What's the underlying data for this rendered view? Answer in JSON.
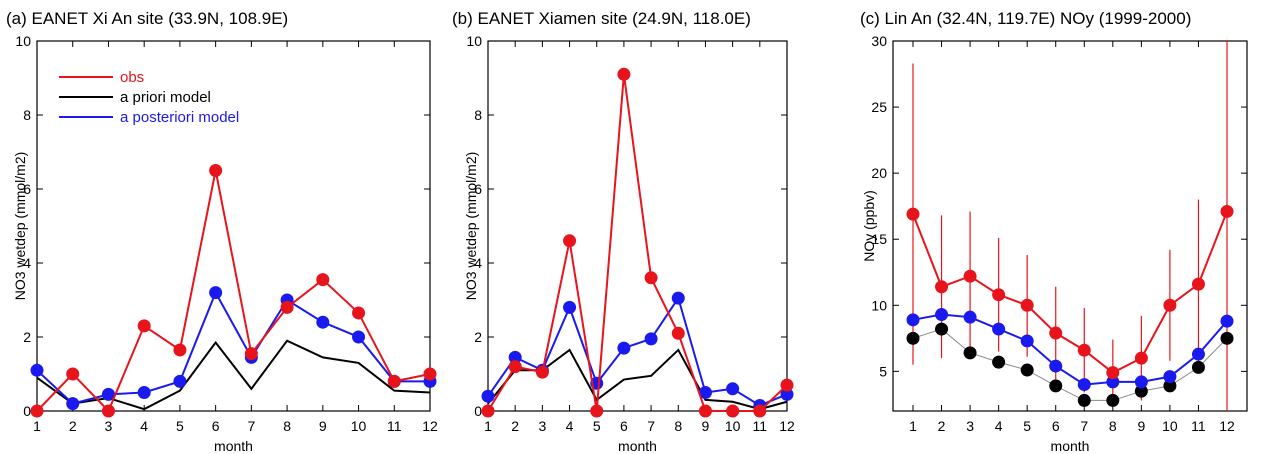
{
  "colors": {
    "obs": "#e8141b",
    "prior": "#000000",
    "post": "#1a1aee",
    "errbar": "#e8141b"
  },
  "chart_data": [
    {
      "type": "line",
      "title": "(a) EANET Xi An site (33.9N, 108.9E)",
      "xlabel": "month",
      "ylabel": "NO3 wetdep (mmol/m2)",
      "xlim": [
        1,
        12
      ],
      "ylim": [
        0,
        10
      ],
      "x": [
        1,
        2,
        3,
        4,
        5,
        6,
        7,
        8,
        9,
        10,
        11,
        12
      ],
      "yticks": [
        0,
        2,
        4,
        6,
        8,
        10
      ],
      "legend": [
        "obs",
        "a priori model",
        "a posteriori model"
      ],
      "series": [
        {
          "name": "obs",
          "values": [
            0.0,
            1.0,
            0.0,
            2.3,
            1.65,
            6.5,
            1.55,
            2.8,
            3.55,
            2.65,
            0.8,
            1.0
          ]
        },
        {
          "name": "a priori model",
          "values": [
            0.9,
            0.2,
            0.35,
            0.05,
            0.55,
            1.85,
            0.6,
            1.9,
            1.45,
            1.3,
            0.55,
            0.5
          ]
        },
        {
          "name": "a posteriori model",
          "values": [
            1.1,
            0.2,
            0.45,
            0.5,
            0.8,
            3.2,
            1.45,
            3.0,
            2.4,
            2.0,
            0.8,
            0.8
          ]
        }
      ]
    },
    {
      "type": "line",
      "title": "(b) EANET Xiamen site (24.9N, 118.0E)",
      "xlabel": "month",
      "ylabel": "NO3 wetdep (mmol/m2)",
      "xlim": [
        1,
        12
      ],
      "ylim": [
        0,
        10
      ],
      "x": [
        1,
        2,
        3,
        4,
        5,
        6,
        7,
        8,
        9,
        10,
        11,
        12
      ],
      "yticks": [
        0,
        2,
        4,
        6,
        8,
        10
      ],
      "series": [
        {
          "name": "obs",
          "values": [
            0.0,
            1.2,
            1.05,
            4.6,
            0.0,
            9.1,
            3.6,
            2.1,
            0.0,
            0.0,
            0.0,
            0.7
          ]
        },
        {
          "name": "a priori model",
          "values": [
            0.2,
            1.1,
            1.1,
            1.65,
            0.3,
            0.85,
            0.95,
            1.65,
            0.3,
            0.25,
            0.05,
            0.25
          ]
        },
        {
          "name": "a posteriori model",
          "values": [
            0.4,
            1.45,
            1.1,
            2.8,
            0.75,
            1.7,
            1.95,
            3.05,
            0.5,
            0.6,
            0.15,
            0.45
          ]
        }
      ]
    },
    {
      "type": "line",
      "title": "(c) Lin An (32.4N, 119.7E) NOy (1999-2000)",
      "xlabel": "month",
      "ylabel": "NOy (ppbv)",
      "xlim": [
        1,
        12
      ],
      "ylim": [
        2,
        30
      ],
      "x": [
        1,
        2,
        3,
        4,
        5,
        6,
        7,
        8,
        9,
        10,
        11,
        12
      ],
      "yticks": [
        5,
        10,
        15,
        20,
        25,
        30
      ],
      "series": [
        {
          "name": "obs",
          "values": [
            16.9,
            11.4,
            12.2,
            10.8,
            10.0,
            7.9,
            6.6,
            4.9,
            6.0,
            10.0,
            11.6,
            17.1
          ],
          "err_low": [
            5.5,
            6.0,
            6.8,
            6.5,
            6.1,
            4.4,
            3.4,
            2.5,
            2.8,
            5.8,
            5.2,
            2.0
          ],
          "err_high": [
            28.3,
            16.8,
            17.1,
            15.1,
            13.8,
            11.4,
            9.8,
            7.4,
            9.2,
            14.2,
            18.0,
            30.0
          ]
        },
        {
          "name": "a priori model",
          "values": [
            7.5,
            8.2,
            6.4,
            5.7,
            5.1,
            3.9,
            2.8,
            2.8,
            3.5,
            3.9,
            5.3,
            7.5
          ]
        },
        {
          "name": "a posteriori model",
          "values": [
            8.9,
            9.3,
            9.1,
            8.2,
            7.3,
            5.4,
            4.0,
            4.2,
            4.2,
            4.6,
            6.3,
            8.8
          ]
        }
      ]
    }
  ]
}
